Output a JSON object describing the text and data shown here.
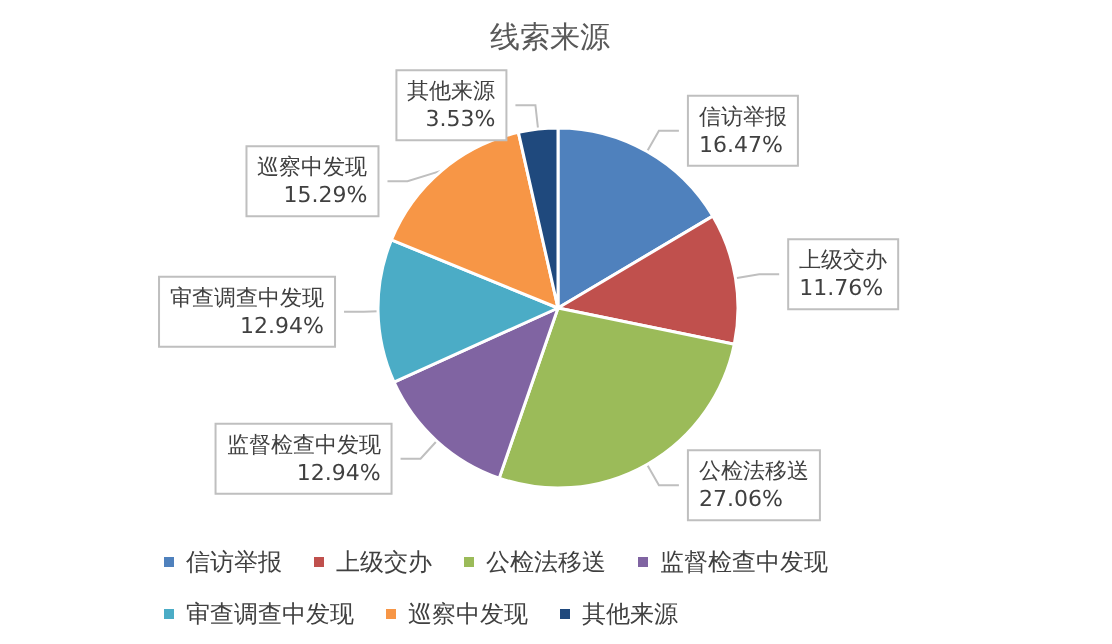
{
  "chart_data": {
    "type": "pie",
    "title": "线索来源",
    "categories": [
      "信访举报",
      "上级交办",
      "公检法移送",
      "监督检查中发现",
      "审查调查中发现",
      "巡察中发现",
      "其他来源"
    ],
    "values": [
      16.47,
      11.76,
      27.06,
      12.94,
      12.94,
      15.29,
      3.53
    ],
    "colors": [
      "#4f81bd",
      "#c0504d",
      "#9bbb59",
      "#8064a2",
      "#4bacc6",
      "#f79646",
      "#1f497d"
    ],
    "value_labels": [
      "16.47%",
      "11.76%",
      "27.06%",
      "12.94%",
      "12.94%",
      "15.29%",
      "3.53%"
    ],
    "legend": "bottom"
  }
}
